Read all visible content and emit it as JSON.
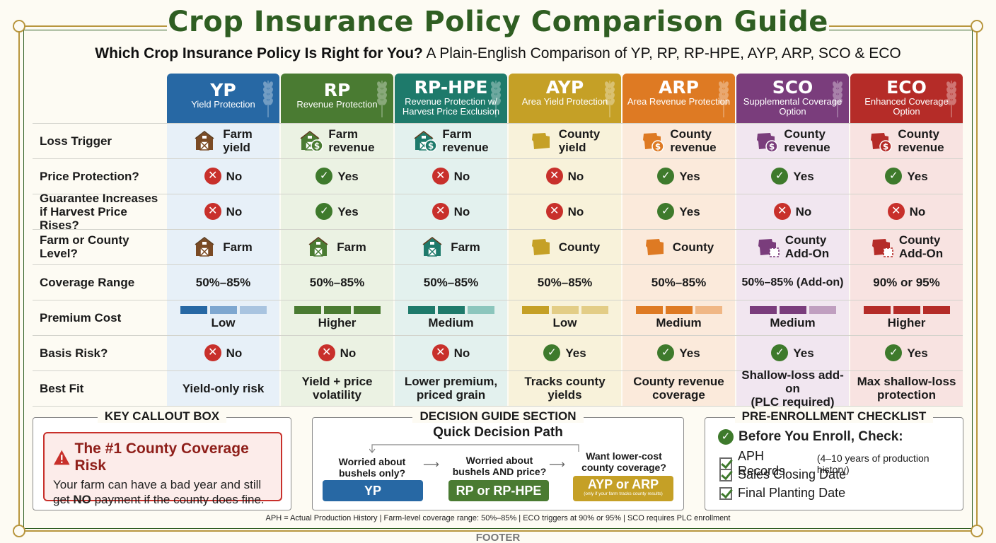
{
  "title": "Crop Insurance Policy Comparison Guide",
  "subtitle_strong": "Which Crop Insurance Policy Is Right for You?",
  "subtitle_rest": " A Plain-English Comparison of YP, RP, RP-HPE, AYP, ARP, SCO & ECO",
  "colors": {
    "YP": "#2768a4",
    "RP": "#4a7b32",
    "RPHPE": "#1e7a6b",
    "AYP": "#c5a026",
    "ARP": "#de7a23",
    "SCO": "#7a3d7c",
    "ECO": "#b52c28",
    "title_green": "#2f5e22",
    "gold_frame": "#b8963e",
    "no_red": "#c8302b",
    "yes_green": "#3e7a2c"
  },
  "policies": [
    {
      "code": "YP",
      "name": "Yield Protection"
    },
    {
      "code": "RP",
      "name": "Revenue Protection"
    },
    {
      "code": "RP-HPE",
      "name": "Revenue Protection w/ Harvest Price Exclusion"
    },
    {
      "code": "AYP",
      "name": "Area Yield Protection"
    },
    {
      "code": "ARP",
      "name": "Area Revenue Protection"
    },
    {
      "code": "SCO",
      "name": "Supplemental Coverage Option"
    },
    {
      "code": "ECO",
      "name": "Enhanced Coverage Option"
    }
  ],
  "rows": {
    "loss_trigger": {
      "label": "Loss Trigger",
      "values": [
        {
          "l1": "Farm",
          "l2": "yield",
          "icon": "barn-icon"
        },
        {
          "l1": "Farm",
          "l2": "revenue",
          "icon": "barn-dollar-icon"
        },
        {
          "l1": "Farm",
          "l2": "revenue",
          "icon": "barn-dollar-icon"
        },
        {
          "l1": "County",
          "l2": "yield",
          "icon": "county-map-icon"
        },
        {
          "l1": "County",
          "l2": "revenue",
          "icon": "county-dollar-icon"
        },
        {
          "l1": "County",
          "l2": "revenue",
          "icon": "county-dollar-icon"
        },
        {
          "l1": "County",
          "l2": "revenue",
          "icon": "county-dollar-icon"
        }
      ]
    },
    "price_protection": {
      "label": "Price Protection?",
      "values": [
        "No",
        "Yes",
        "No",
        "No",
        "Yes",
        "Yes",
        "Yes"
      ]
    },
    "guarantee_increases": {
      "label1": "Guarantee Increases",
      "label2": "if Harvest Price Rises?",
      "values": [
        "No",
        "Yes",
        "No",
        "No",
        "Yes",
        "No",
        "No"
      ]
    },
    "level": {
      "label": "Farm or County Level?",
      "values": [
        {
          "l1": "Farm",
          "l2": "",
          "icon": "barn-icon"
        },
        {
          "l1": "Farm",
          "l2": "",
          "icon": "barn-icon"
        },
        {
          "l1": "Farm",
          "l2": "",
          "icon": "barn-icon"
        },
        {
          "l1": "County",
          "l2": "",
          "icon": "county-map-icon"
        },
        {
          "l1": "County",
          "l2": "",
          "icon": "county-map-icon"
        },
        {
          "l1": "County",
          "l2": "Add-On",
          "icon": "county-addon-icon"
        },
        {
          "l1": "County",
          "l2": "Add-On",
          "icon": "county-addon-icon"
        }
      ]
    },
    "coverage_range": {
      "label": "Coverage Range",
      "values": [
        "50%–85%",
        "50%–85%",
        "50%–85%",
        "50%–85%",
        "50%–85%",
        "50%–85% (Add-on)",
        "90% or 95%"
      ]
    },
    "premium_cost": {
      "label": "Premium Cost",
      "values": [
        "Low",
        "Higher",
        "Medium",
        "Low",
        "Medium",
        "Medium",
        "Higher"
      ],
      "levels": [
        1,
        3,
        2,
        1,
        2,
        2,
        3
      ]
    },
    "basis_risk": {
      "label": "Basis Risk?",
      "values": [
        "No",
        "No",
        "No",
        "Yes",
        "Yes",
        "Yes",
        "Yes"
      ]
    },
    "best_fit": {
      "label": "Best Fit",
      "values": [
        {
          "l1": "Yield-only risk",
          "l2": ""
        },
        {
          "l1": "Yield + price",
          "l2": "volatility"
        },
        {
          "l1": "Lower premium,",
          "l2": "priced grain"
        },
        {
          "l1": "Tracks county",
          "l2": "yields"
        },
        {
          "l1": "County revenue",
          "l2": "coverage"
        },
        {
          "l1": "Shallow-loss add-on",
          "l2": "(PLC required)"
        },
        {
          "l1": "Max shallow-loss",
          "l2": "protection"
        }
      ]
    }
  },
  "callout": {
    "section_title": "KEY CALLOUT BOX",
    "heading": "The #1 County Coverage Risk",
    "body_pre": "Your farm can have a bad year and still get ",
    "body_strong": "NO",
    "body_post": " payment if the county does fine."
  },
  "decision": {
    "section_title": "DECISION GUIDE SECTION",
    "subtitle": "Quick Decision Path",
    "q1": "Worried about bushels only?",
    "q2": "Worried about bushels AND price?",
    "q3": "Want lower-cost county coverage?",
    "a1": "YP",
    "a2": "RP or RP-HPE",
    "a3": "AYP or ARP",
    "a3_note": "(only if your farm tracks county results)"
  },
  "checklist": {
    "section_title": "PRE-ENROLLMENT CHECKLIST",
    "heading": "Before You Enroll, Check:",
    "items": [
      {
        "main": "APH Records",
        "note": "(4–10 years of production history)"
      },
      {
        "main": "Sales Closing Date",
        "note": ""
      },
      {
        "main": "Final Planting Date",
        "note": ""
      }
    ]
  },
  "footnote": "APH = Actual Production History | Farm-level coverage range: 50%–85% | ECO triggers at 90% or 95% | SCO requires PLC enrollment",
  "footer": "FOOTER"
}
